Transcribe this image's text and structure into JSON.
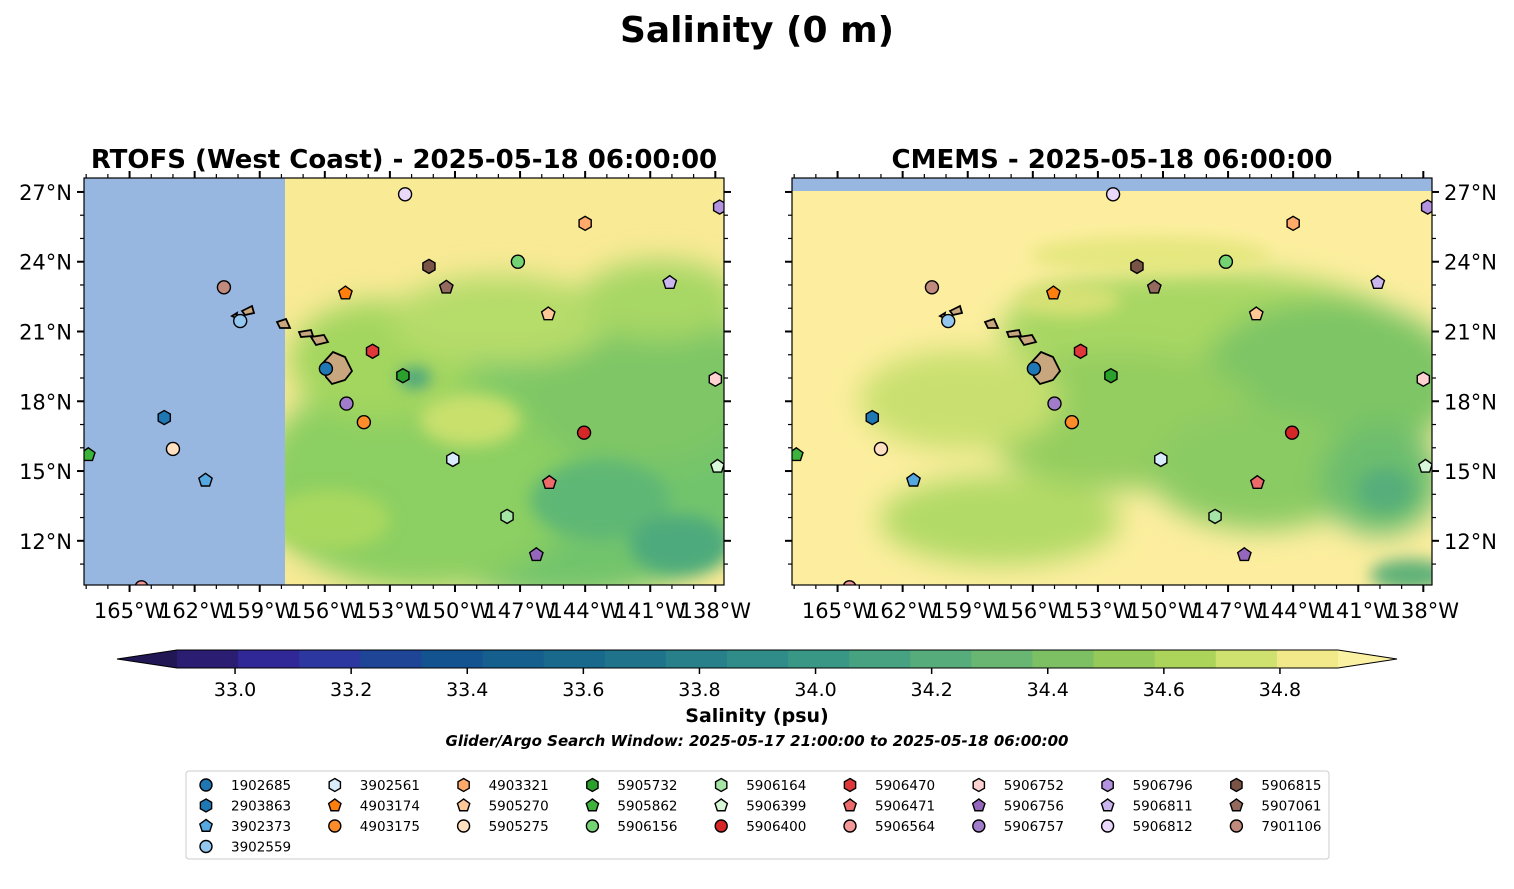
{
  "suptitle": "Salinity (0 m)",
  "search_window": "Glider/Argo Search Window: 2025-05-17 21:00:00 to 2025-05-18 06:00:00",
  "chart_data": [
    {
      "type": "map",
      "title": "RTOFS (West Coast) - 2025-05-18 06:00:00",
      "lon_range": [
        -167.1,
        -137.6
      ],
      "lat_range": [
        10.1,
        27.6
      ],
      "lon_ticks": [
        "165°W",
        "162°W",
        "159°W",
        "156°W",
        "153°W",
        "150°W",
        "147°W",
        "144°W",
        "141°W",
        "138°W"
      ],
      "lat_ticks": [
        "12°N",
        "15°N",
        "18°N",
        "21°N",
        "24°N",
        "27°N"
      ],
      "no_data_region": {
        "lon": [
          -167.1,
          -157.8
        ],
        "lat": [
          10.1,
          27.6
        ]
      }
    },
    {
      "type": "map",
      "title": "CMEMS - 2025-05-18 06:00:00",
      "lon_range": [
        -167.1,
        -137.6
      ],
      "lat_range": [
        10.1,
        27.6
      ],
      "lon_ticks": [
        "165°W",
        "162°W",
        "159°W",
        "156°W",
        "153°W",
        "150°W",
        "147°W",
        "144°W",
        "141°W",
        "138°W"
      ],
      "lat_ticks": [
        "12°N",
        "15°N",
        "18°N",
        "21°N",
        "24°N",
        "27°N"
      ],
      "no_data_region": {
        "lon": [
          -167.1,
          -137.6
        ],
        "lat": [
          27.05,
          27.6
        ]
      }
    }
  ],
  "colorbar": {
    "label": "Salinity (psu)",
    "vmin": 32.9,
    "vmax": 34.9,
    "step": 0.1,
    "tick_values": [
      "33.0",
      "33.2",
      "33.4",
      "33.6",
      "33.8",
      "34.0",
      "34.2",
      "34.4",
      "34.6",
      "34.8"
    ],
    "colors": [
      "#2a1d72",
      "#2f2896",
      "#2c37a0",
      "#1e4596",
      "#13538f",
      "#155f8e",
      "#19698c",
      "#1f748b",
      "#27808a",
      "#2f8c88",
      "#399786",
      "#46a281",
      "#56ad7b",
      "#68b671",
      "#7dc064",
      "#95ca5a",
      "#acd35a",
      "#cfe16f",
      "#f2ea8a"
    ],
    "under_color": "#221755",
    "over_color": "#fbf1a3"
  },
  "colors": {
    "nodata": "#97b6e0",
    "land": "#c9a77e",
    "ocean_fill": "#fcee9e"
  },
  "floats": [
    {
      "id": "1902685",
      "marker": "circle",
      "color": "#1f77b4",
      "lon": -155.95,
      "lat": 19.4
    },
    {
      "id": "2903863",
      "marker": "hexagon",
      "color": "#1f77b4",
      "lon": -163.4,
      "lat": 17.3
    },
    {
      "id": "3902373",
      "marker": "pentagon",
      "color": "#56a8e0",
      "lon": -161.5,
      "lat": 14.6
    },
    {
      "id": "3902559",
      "marker": "circle",
      "color": "#93c7ef",
      "lon": -159.9,
      "lat": 21.45
    },
    {
      "id": "3902561",
      "marker": "hexagon",
      "color": "#d9ecfc",
      "lon": -150.1,
      "lat": 15.5
    },
    {
      "id": "4903174",
      "marker": "pentagon",
      "color": "#ff7f0e",
      "lon": -155.05,
      "lat": 22.65
    },
    {
      "id": "4903175",
      "marker": "circle",
      "color": "#ff8c2a",
      "lon": -154.2,
      "lat": 17.1
    },
    {
      "id": "4903321",
      "marker": "hexagon",
      "color": "#ffaa6a",
      "lon": -144.0,
      "lat": 25.65
    },
    {
      "id": "5905270",
      "marker": "pentagon",
      "color": "#ffc896",
      "lon": -145.7,
      "lat": 21.75
    },
    {
      "id": "5905275",
      "marker": "circle",
      "color": "#ffe0c0",
      "lon": -163.0,
      "lat": 15.95
    },
    {
      "id": "5905732",
      "marker": "hexagon",
      "color": "#2ca02c",
      "lon": -152.4,
      "lat": 19.1
    },
    {
      "id": "5905862",
      "marker": "pentagon",
      "color": "#3cb43c",
      "lon": -166.9,
      "lat": 15.7
    },
    {
      "id": "5906156",
      "marker": "circle",
      "color": "#74d474",
      "lon": -147.1,
      "lat": 24.0
    },
    {
      "id": "5906164",
      "marker": "hexagon",
      "color": "#a6e4a6",
      "lon": -147.6,
      "lat": 13.05
    },
    {
      "id": "5906399",
      "marker": "pentagon",
      "color": "#d8f7d8",
      "lon": -137.9,
      "lat": 15.2
    },
    {
      "id": "5906400",
      "marker": "circle",
      "color": "#d62728",
      "lon": -144.05,
      "lat": 16.65
    },
    {
      "id": "5906470",
      "marker": "hexagon",
      "color": "#e0383a",
      "lon": -153.8,
      "lat": 20.15
    },
    {
      "id": "5906471",
      "marker": "pentagon",
      "color": "#ec6a6a",
      "lon": -145.65,
      "lat": 14.5
    },
    {
      "id": "5906564",
      "marker": "circle",
      "color": "#f29898",
      "lon": -164.45,
      "lat": 10.0
    },
    {
      "id": "5906752",
      "marker": "hexagon",
      "color": "#ffd2d2",
      "lon": -138.0,
      "lat": 18.95
    },
    {
      "id": "5906756",
      "marker": "pentagon",
      "color": "#9467bd",
      "lon": -146.25,
      "lat": 11.4
    },
    {
      "id": "5906757",
      "marker": "circle",
      "color": "#a07ccb",
      "lon": -155.0,
      "lat": 17.9
    },
    {
      "id": "5906796",
      "marker": "hexagon",
      "color": "#b393df",
      "lon": -137.8,
      "lat": 26.35
    },
    {
      "id": "5906811",
      "marker": "pentagon",
      "color": "#ccb6f0",
      "lon": -140.1,
      "lat": 23.1
    },
    {
      "id": "5906812",
      "marker": "circle",
      "color": "#ead8fb",
      "lon": -152.3,
      "lat": 26.9
    },
    {
      "id": "5906815",
      "marker": "hexagon",
      "color": "#7a5347",
      "lon": -151.2,
      "lat": 23.8
    },
    {
      "id": "5907061",
      "marker": "pentagon",
      "color": "#956a5e",
      "lon": -150.4,
      "lat": 22.9
    },
    {
      "id": "7901106",
      "marker": "circle",
      "color": "#c08a7c",
      "lon": -160.65,
      "lat": 22.9
    }
  ],
  "legend": {
    "columns": [
      [
        "1902685",
        "2903863",
        "3902373",
        "3902559"
      ],
      [
        "3902561",
        "4903174",
        "4903175"
      ],
      [
        "4903321",
        "5905270",
        "5905275"
      ],
      [
        "5905732",
        "5905862",
        "5906156"
      ],
      [
        "5906164",
        "5906399",
        "5906400"
      ],
      [
        "5906470",
        "5906471",
        "5906564"
      ],
      [
        "5906752",
        "5906756",
        "5906757"
      ],
      [
        "5906796",
        "5906811",
        "5906812"
      ],
      [
        "5906815",
        "5907061",
        "7901106"
      ]
    ]
  }
}
